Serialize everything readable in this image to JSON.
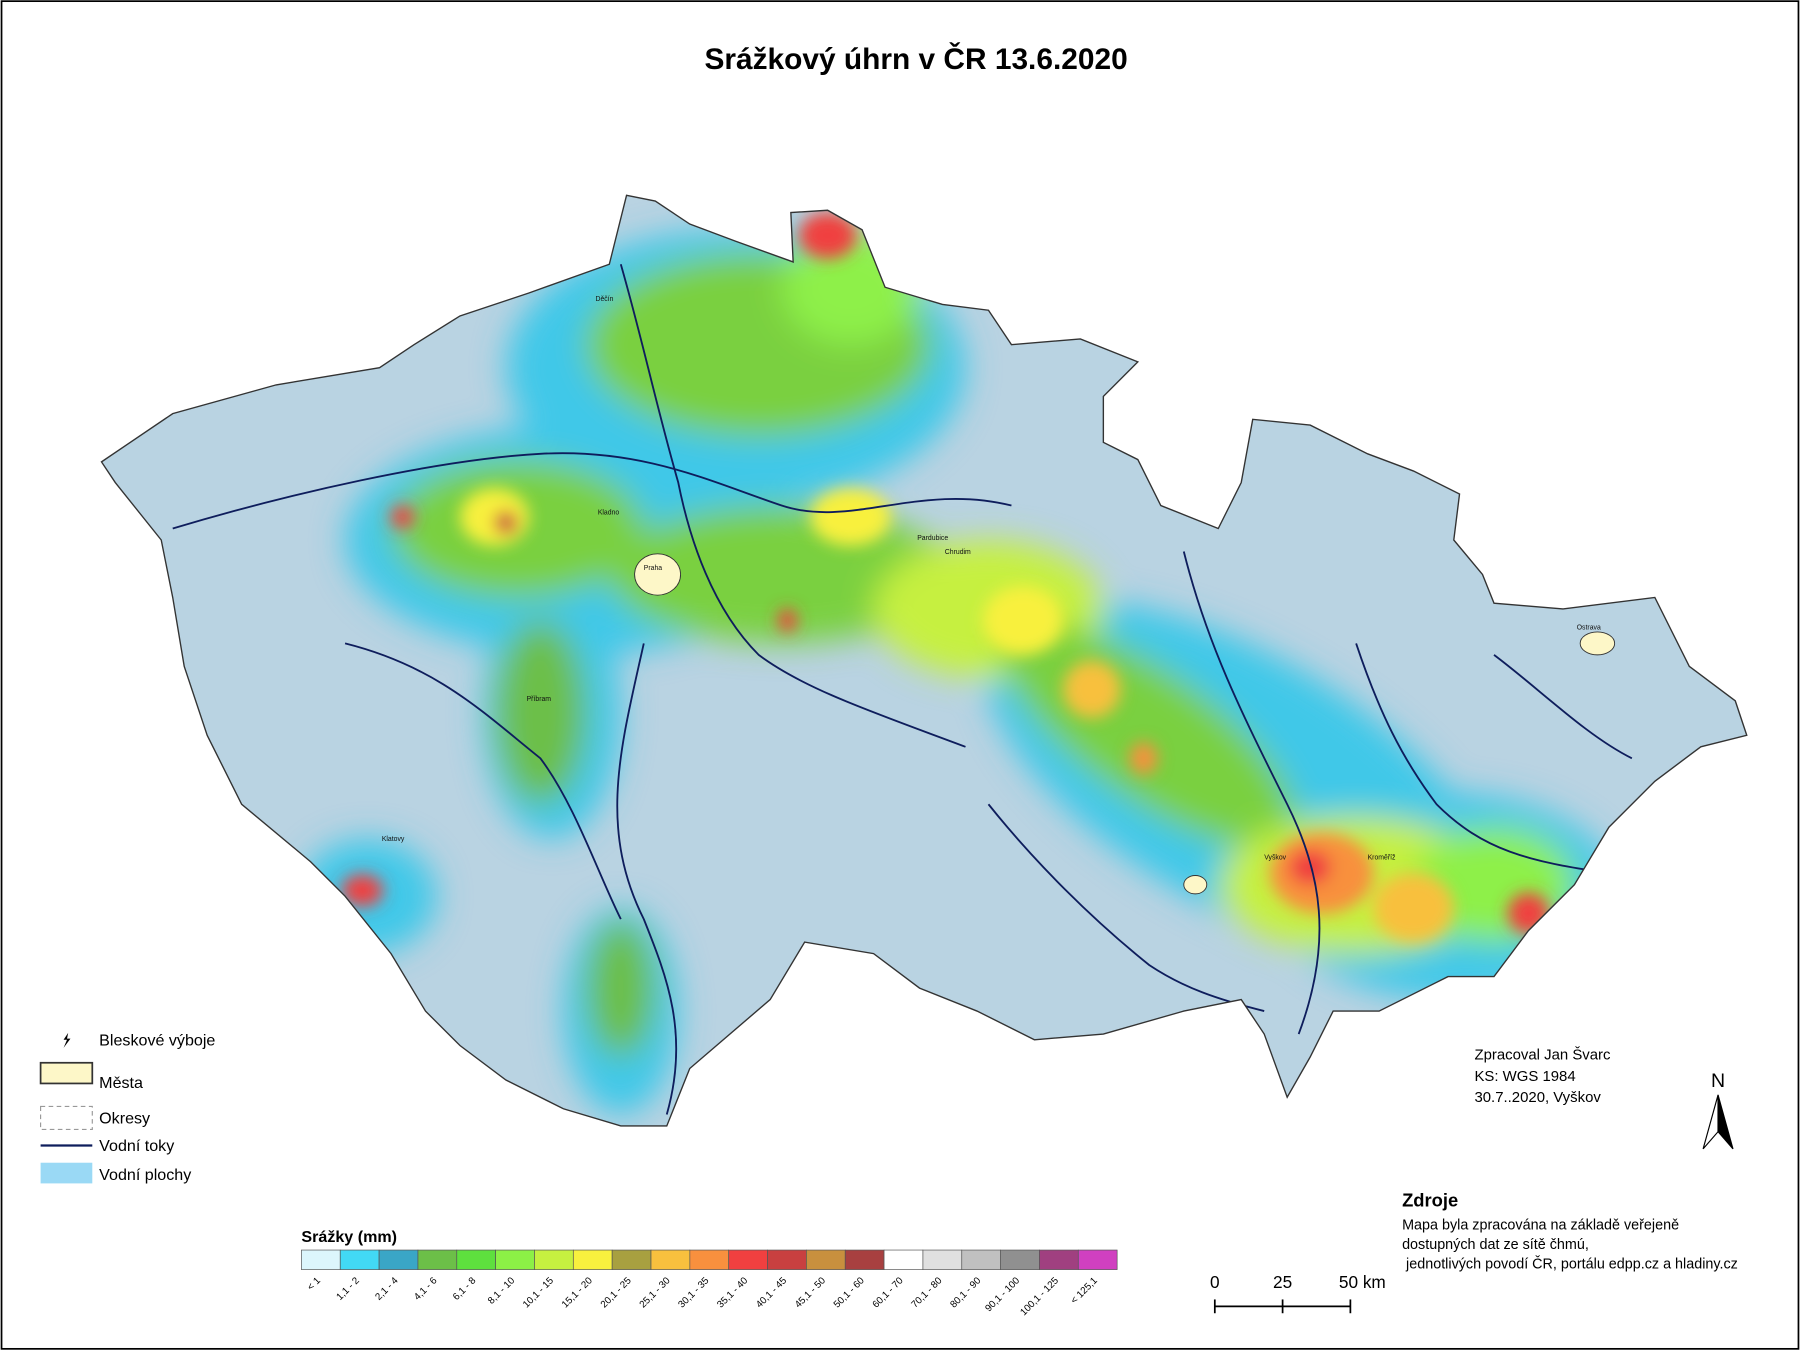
{
  "title": "Srážkový úhrn v ČR 13.6.2020",
  "map_legend": {
    "items": [
      "Bleskové výboje",
      "Města",
      "Okresy",
      "Vodní toky",
      "Vodní plochy"
    ]
  },
  "precip_legend": {
    "title": "Srážky (mm)",
    "classes": [
      {
        "label": "< 1",
        "color": "#dcf6fc"
      },
      {
        "label": "1,1 - 2",
        "color": "#42d9f5"
      },
      {
        "label": "2,1 - 4",
        "color": "#3aa6c6"
      },
      {
        "label": "4,1 - 6",
        "color": "#6cbf48"
      },
      {
        "label": "6,1 - 8",
        "color": "#5ee03e"
      },
      {
        "label": "8,1 - 10",
        "color": "#8cf046"
      },
      {
        "label": "10,1 - 15",
        "color": "#c6f040"
      },
      {
        "label": "15,1 - 20",
        "color": "#f8f03e"
      },
      {
        "label": "20,1 - 25",
        "color": "#a8a040"
      },
      {
        "label": "25,1 - 30",
        "color": "#f8c03e"
      },
      {
        "label": "30,1 - 35",
        "color": "#f8903e"
      },
      {
        "label": "35,1 - 40",
        "color": "#f04040"
      },
      {
        "label": "40,1 - 45",
        "color": "#c84040"
      },
      {
        "label": "45,1 - 50",
        "color": "#c8903e"
      },
      {
        "label": "50,1 - 60",
        "color": "#a84040"
      },
      {
        "label": "60,1 - 70",
        "color": "#ffffff"
      },
      {
        "label": "70,1 - 80",
        "color": "#e0e0e0"
      },
      {
        "label": "80,1 - 90",
        "color": "#c0c0c0"
      },
      {
        "label": "90,1 - 100",
        "color": "#909090"
      },
      {
        "label": "100,1 - 125",
        "color": "#a04080"
      },
      {
        "label": "< 125,1",
        "color": "#d040c0"
      }
    ]
  },
  "credits": [
    "Zpracoval Jan Švarc",
    "KS: WGS 1984",
    "30.7..2020, Vyškov"
  ],
  "north": "N",
  "sources": {
    "title": "Zdroje",
    "lines": [
      "Mapa byla zpracována na základě veřejeně",
      "dostupných dat ze sítě čhmú,",
      " jednotlivých povodí ČR, portálu edpp.cz a hladiny.cz"
    ]
  },
  "scale": {
    "labels": [
      "0",
      "25",
      "50 km"
    ]
  },
  "cities": [
    "Praha",
    "Ostrava",
    "Pardubice",
    "Chrudim",
    "Příbram",
    "Klatovy",
    "Kroměříž",
    "Děčín",
    "Kladno",
    "Vyškov"
  ]
}
